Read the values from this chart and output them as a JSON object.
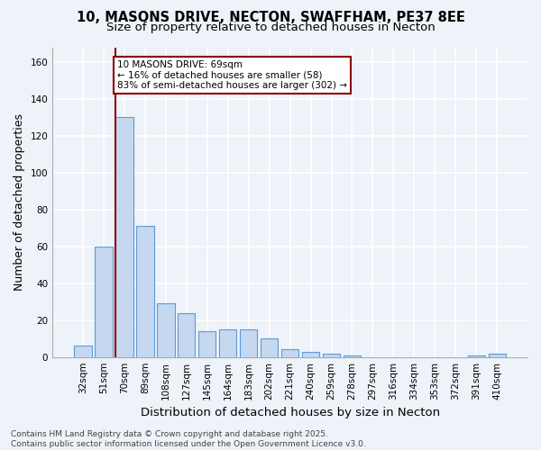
{
  "title_line1": "10, MASONS DRIVE, NECTON, SWAFFHAM, PE37 8EE",
  "title_line2": "Size of property relative to detached houses in Necton",
  "categories": [
    "32sqm",
    "51sqm",
    "70sqm",
    "89sqm",
    "108sqm",
    "127sqm",
    "145sqm",
    "164sqm",
    "183sqm",
    "202sqm",
    "221sqm",
    "240sqm",
    "259sqm",
    "278sqm",
    "297sqm",
    "316sqm",
    "334sqm",
    "353sqm",
    "372sqm",
    "391sqm",
    "410sqm"
  ],
  "values": [
    6,
    60,
    130,
    71,
    29,
    24,
    14,
    15,
    15,
    10,
    4,
    3,
    2,
    1,
    0,
    0,
    0,
    0,
    0,
    1,
    2
  ],
  "bar_color": "#c5d8ef",
  "bar_edge_color": "#5b9bd5",
  "highlight_index": 2,
  "highlight_line_color": "#8b0000",
  "ylabel": "Number of detached properties",
  "xlabel": "Distribution of detached houses by size in Necton",
  "ylim": [
    0,
    168
  ],
  "yticks": [
    0,
    20,
    40,
    60,
    80,
    100,
    120,
    140,
    160
  ],
  "annotation_text": "10 MASONS DRIVE: 69sqm\n← 16% of detached houses are smaller (58)\n83% of semi-detached houses are larger (302) →",
  "annotation_box_color": "#ffffff",
  "annotation_box_edge_color": "#8b0000",
  "footer_text": "Contains HM Land Registry data © Crown copyright and database right 2025.\nContains public sector information licensed under the Open Government Licence v3.0.",
  "background_color": "#eef2f9",
  "grid_color": "#ffffff",
  "title_fontsize": 10.5,
  "subtitle_fontsize": 9.5,
  "axis_label_fontsize": 9,
  "tick_fontsize": 7.5,
  "annotation_fontsize": 7.5,
  "footer_fontsize": 6.5
}
